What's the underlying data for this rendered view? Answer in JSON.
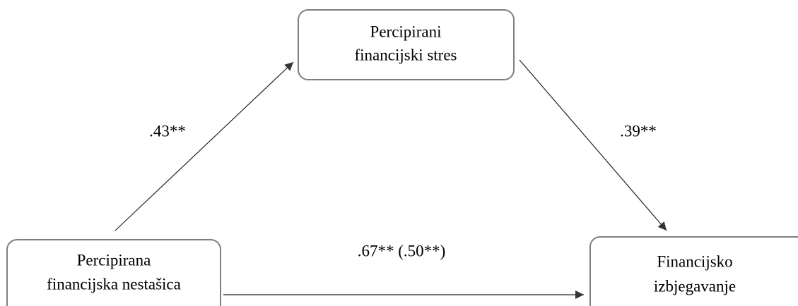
{
  "nodes": [
    {
      "label": [
        "Percipirani",
        "financijski stres"
      ]
    },
    {
      "label": [
        "Percipirana",
        "financijska nestašica"
      ]
    },
    {
      "label": [
        "Financijsko",
        "izbjegavanje"
      ]
    }
  ],
  "edges": [
    {
      "label": ".43**"
    },
    {
      "label": ".39**"
    },
    {
      "label": ".67** (.50**)"
    }
  ]
}
